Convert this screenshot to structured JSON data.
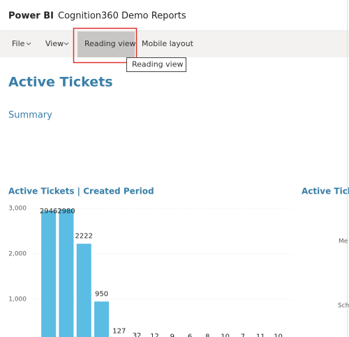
{
  "header": {
    "brand": "Power BI",
    "report": "Cognition360 Demo Reports"
  },
  "toolbar": {
    "items": [
      "File",
      "View",
      "Reading view",
      "Mobile layout"
    ],
    "tooltip": "Reading view"
  },
  "page": {
    "title": "Active Tickets",
    "subtitle": "Summary"
  },
  "chart_data": {
    "type": "bar",
    "title": "Active Tickets | Created Period",
    "values": [
      2946,
      2980,
      2222,
      950,
      127,
      32,
      12,
      9,
      6,
      8,
      10,
      7,
      11,
      10
    ],
    "color": "#5bbce4",
    "ylim": [
      0,
      3000
    ],
    "yticks": [
      {
        "value": 1000,
        "label": "1,000"
      },
      {
        "value": 2000,
        "label": "2,000"
      },
      {
        "value": 3000,
        "label": "3,000"
      }
    ],
    "grid": true
  },
  "second_chart": {
    "title": "Active Tick",
    "labels": [
      "Me",
      "Sch"
    ]
  }
}
